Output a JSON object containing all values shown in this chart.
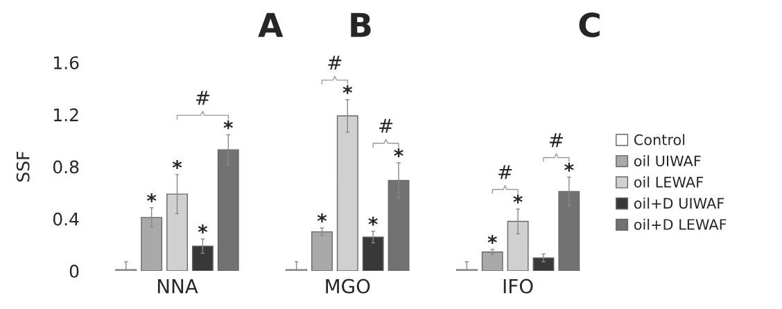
{
  "chart_data": {
    "type": "bar",
    "ylabel": "SSF",
    "categories": [
      "NNA",
      "MGO",
      "IFO"
    ],
    "series": [
      {
        "name": "Control",
        "color": "#ffffff",
        "values": [
          0.01,
          0.01,
          0.01
        ],
        "errors": [
          0.06,
          0.06,
          0.06
        ],
        "value_labels": [
          null,
          null,
          null
        ]
      },
      {
        "name": "oil UIWAF",
        "color": "#a9a9a9",
        "values": [
          0.41,
          0.3,
          0.145
        ],
        "errors": [
          0.075,
          0.03,
          0.02
        ],
        "value_labels": [
          "*",
          "*",
          "*"
        ]
      },
      {
        "name": "oil LEWAF",
        "color": "#d0d0d0",
        "values": [
          0.59,
          1.19,
          0.38
        ],
        "errors": [
          0.15,
          0.125,
          0.095
        ],
        "value_labels": [
          "*",
          "*",
          "*"
        ]
      },
      {
        "name": "oil+D UIWAF",
        "color": "#383838",
        "values": [
          0.19,
          0.26,
          0.1
        ],
        "errors": [
          0.055,
          0.045,
          0.03
        ],
        "value_labels": [
          "*",
          "*",
          null
        ]
      },
      {
        "name": "oil+D LEWAF",
        "color": "#727272",
        "values": [
          0.93,
          0.695,
          0.61
        ],
        "errors": [
          0.115,
          0.135,
          0.11
        ],
        "value_labels": [
          "*",
          "*",
          "*"
        ]
      }
    ],
    "annotations": [
      "A",
      "B",
      "C",
      "#",
      "#",
      "#",
      "#",
      "#"
    ],
    "ylim": [
      0,
      1.6
    ],
    "yticks": [
      0,
      0.4,
      0.8,
      1.2,
      1.6
    ],
    "grid": false,
    "legend": "right"
  }
}
